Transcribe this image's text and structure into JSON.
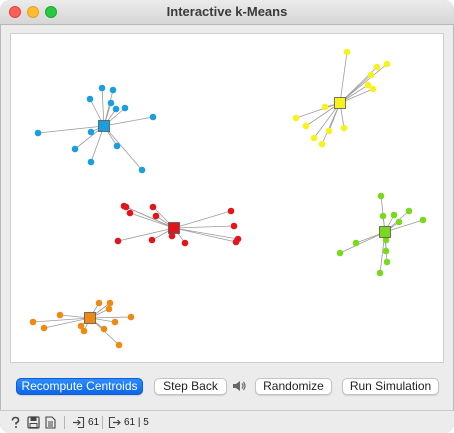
{
  "window": {
    "title": "Interactive k-Means"
  },
  "controls": {
    "recompute_label": "Recompute Centroids",
    "step_back_label": "Step Back",
    "randomize_label": "Randomize",
    "run_label": "Run Simulation"
  },
  "status": {
    "input_count": "61",
    "output_count": "61 | 5"
  },
  "icons": {
    "help": "help-icon",
    "save": "save-icon",
    "report": "report-icon",
    "input": "input-icon",
    "output": "output-icon",
    "sound": "speaker-icon"
  },
  "colors": {
    "cluster_blue": "#1a9ee0",
    "cluster_yellow": "#f7f21c",
    "cluster_red": "#e2141c",
    "cluster_green": "#7ad91c",
    "cluster_orange": "#ef8a10",
    "accent": "#0a66e8"
  }
}
